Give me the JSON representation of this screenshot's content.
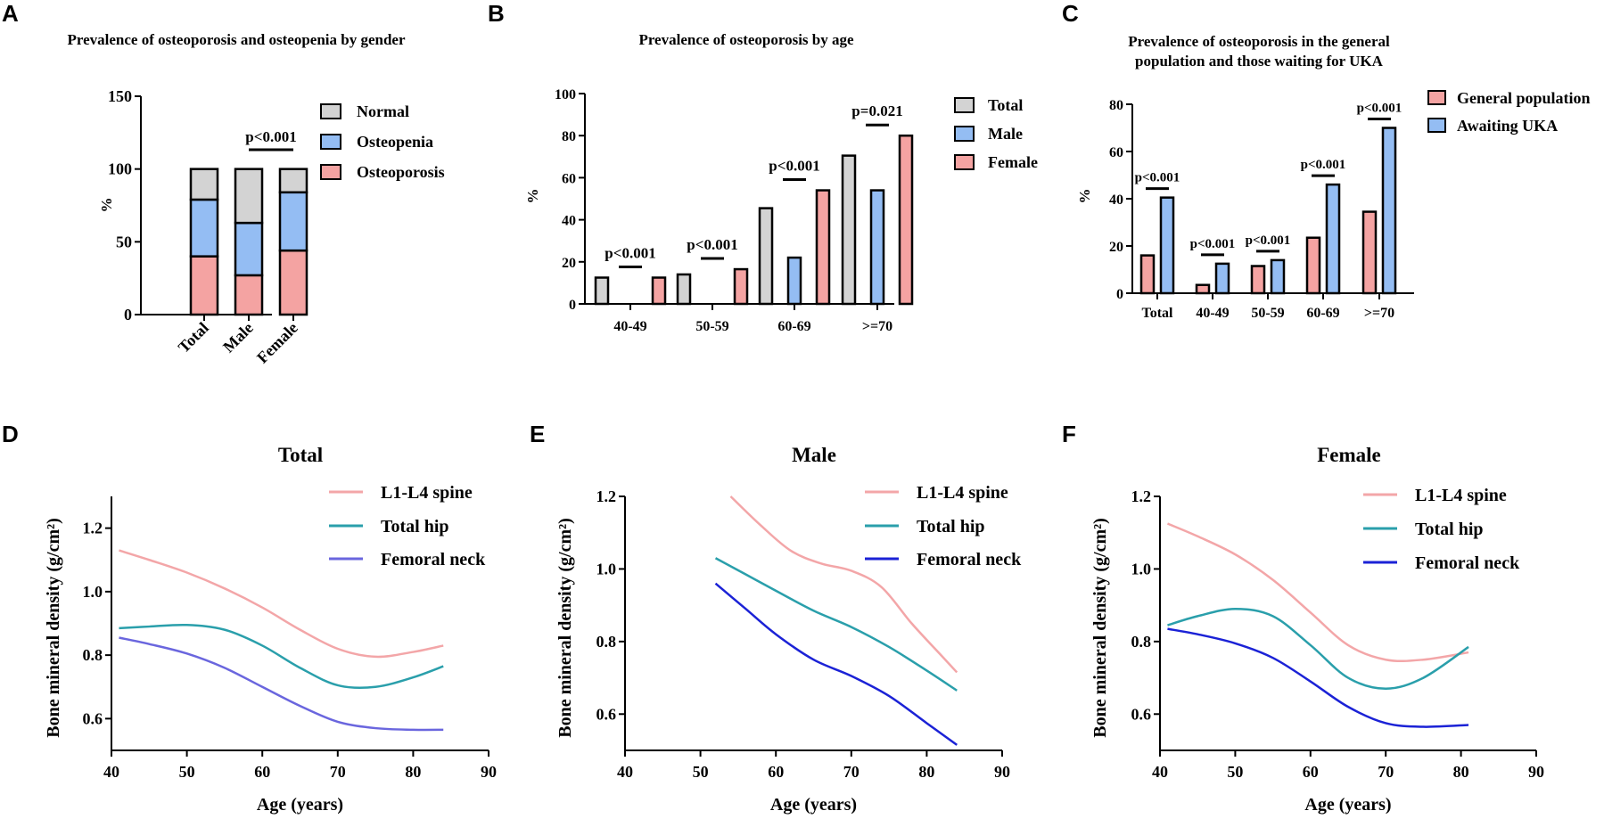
{
  "colors": {
    "gray": "#d3d3d3",
    "blue": "#94bdf3",
    "pink": "#f4a3a2",
    "line_pink": "#f3a6a8",
    "line_teal": "#2a9fab",
    "line_purple": "#6a66de",
    "line_blue": "#1b22d6"
  },
  "chart_data": [
    {
      "panel": "A",
      "type": "bar",
      "stacked": true,
      "title": "Prevalence of osteoporosis and osteopenia by gender",
      "ylabel": "%",
      "ylim": [
        0,
        150
      ],
      "yticks": [
        0,
        50,
        100,
        150
      ],
      "categories": [
        "Total",
        "Male",
        "Female"
      ],
      "series": [
        {
          "name": "Osteoporosis",
          "color": "#f4a3a2",
          "values": [
            40,
            27,
            44
          ]
        },
        {
          "name": "Osteopenia",
          "color": "#94bdf3",
          "values": [
            39,
            36,
            40
          ]
        },
        {
          "name": "Normal",
          "color": "#d3d3d3",
          "values": [
            21,
            37,
            16
          ]
        }
      ],
      "legend": [
        "Normal",
        "Osteopenia",
        "Osteoporosis"
      ],
      "annotations": [
        {
          "text": "p<0.001",
          "from": 1,
          "to": 2
        }
      ]
    },
    {
      "panel": "B",
      "type": "bar",
      "title": "Prevalence of osteoporosis by age",
      "ylabel": "%",
      "ylim": [
        0,
        100
      ],
      "yticks": [
        0,
        20,
        40,
        60,
        80,
        100
      ],
      "categories": [
        "40-49",
        "50-59",
        "60-69",
        ">=70"
      ],
      "series": [
        {
          "name": "Total",
          "color": "#d3d3d3",
          "values": [
            12.5,
            14,
            45.5,
            70.5
          ]
        },
        {
          "name": "Male",
          "color": "#94bdf3",
          "values": [
            0,
            0,
            22,
            54
          ]
        },
        {
          "name": "Female",
          "color": "#f4a3a2",
          "values": [
            12.5,
            16.5,
            54,
            80
          ]
        }
      ],
      "annotations": [
        "p<0.001",
        "p<0.001",
        "p<0.001",
        "p=0.021"
      ]
    },
    {
      "panel": "C",
      "type": "bar",
      "title": [
        "Prevalence of osteoporosis in the general",
        "population and those waiting for UKA"
      ],
      "ylabel": "%",
      "ylim": [
        0,
        80
      ],
      "yticks": [
        0,
        20,
        40,
        60,
        80
      ],
      "categories": [
        "Total",
        "40-49",
        "50-59",
        "60-69",
        ">=70"
      ],
      "series": [
        {
          "name": "General population",
          "color": "#f4a3a2",
          "values": [
            16,
            3.5,
            11.5,
            23.5,
            34.5
          ]
        },
        {
          "name": "Awaiting UKA",
          "color": "#94bdf3",
          "values": [
            40.5,
            12.5,
            14,
            46,
            70
          ]
        }
      ],
      "annotations": [
        "p<0.001",
        "p<0.001",
        "p<0.001",
        "p<0.001",
        "p<0.001"
      ]
    },
    {
      "panel": "D",
      "type": "line",
      "title": "Total",
      "xlabel": "Age (years)",
      "ylabel": "Bone mineral density (g/cm²)",
      "xlim": [
        40,
        90
      ],
      "ylim": [
        0.5,
        1.3
      ],
      "xticks": [
        40,
        50,
        60,
        70,
        80,
        90
      ],
      "yticks": [
        0.6,
        0.8,
        1.0,
        1.2
      ],
      "ytick_labels": [
        "0.6",
        "0.8",
        "1.0",
        "1.2"
      ],
      "series": [
        {
          "name": "L1-L4 spine",
          "color": "#f3a6a8",
          "x": [
            41,
            45,
            50,
            55,
            60,
            65,
            70,
            75,
            80,
            84
          ],
          "y": [
            1.13,
            1.1,
            1.06,
            1.01,
            0.95,
            0.88,
            0.82,
            0.795,
            0.81,
            0.83
          ]
        },
        {
          "name": "Total hip",
          "color": "#2a9fab",
          "x": [
            41,
            45,
            50,
            55,
            60,
            65,
            70,
            75,
            80,
            84
          ],
          "y": [
            0.885,
            0.89,
            0.895,
            0.88,
            0.83,
            0.76,
            0.705,
            0.7,
            0.73,
            0.765
          ]
        },
        {
          "name": "Femoral neck",
          "color": "#6a66de",
          "x": [
            41,
            45,
            50,
            55,
            60,
            65,
            70,
            75,
            80,
            84
          ],
          "y": [
            0.855,
            0.835,
            0.805,
            0.76,
            0.7,
            0.64,
            0.59,
            0.57,
            0.565,
            0.565
          ]
        }
      ]
    },
    {
      "panel": "E",
      "type": "line",
      "title": "Male",
      "xlabel": "Age (years)",
      "ylabel": "Bone mineral density (g/cm²)",
      "xlim": [
        40,
        90
      ],
      "ylim": [
        0.5,
        1.2
      ],
      "xticks": [
        40,
        50,
        60,
        70,
        80,
        90
      ],
      "yticks": [
        0.6,
        0.8,
        1.0,
        1.2
      ],
      "ytick_labels": [
        "0.6",
        "0.8",
        "1.0",
        "1.2"
      ],
      "series": [
        {
          "name": "L1-L4 spine",
          "color": "#f3a6a8",
          "x": [
            54,
            58,
            62,
            66,
            70,
            74,
            78,
            82,
            84
          ],
          "y": [
            1.2,
            1.12,
            1.05,
            1.015,
            0.995,
            0.95,
            0.85,
            0.76,
            0.715
          ]
        },
        {
          "name": "Total hip",
          "color": "#2a9fab",
          "x": [
            52,
            56,
            60,
            65,
            70,
            75,
            80,
            84
          ],
          "y": [
            1.03,
            0.985,
            0.94,
            0.885,
            0.84,
            0.785,
            0.72,
            0.665
          ]
        },
        {
          "name": "Femoral neck",
          "color": "#1b22d6",
          "x": [
            52,
            56,
            60,
            65,
            70,
            75,
            80,
            84
          ],
          "y": [
            0.96,
            0.89,
            0.82,
            0.75,
            0.705,
            0.65,
            0.575,
            0.515
          ]
        }
      ]
    },
    {
      "panel": "F",
      "type": "line",
      "title": "Female",
      "xlabel": "Age (years)",
      "ylabel": "Bone mineral density (g/cm²)",
      "xlim": [
        40,
        90
      ],
      "ylim": [
        0.5,
        1.2
      ],
      "xticks": [
        40,
        50,
        60,
        70,
        80,
        90
      ],
      "yticks": [
        0.6,
        0.8,
        1.0,
        1.2
      ],
      "ytick_labels": [
        "0.6",
        "0.8",
        "1.0",
        "1.2"
      ],
      "series": [
        {
          "name": "L1-L4 spine",
          "color": "#f3a6a8",
          "x": [
            41,
            45,
            50,
            55,
            60,
            65,
            70,
            75,
            81
          ],
          "y": [
            1.125,
            1.09,
            1.04,
            0.97,
            0.88,
            0.79,
            0.75,
            0.75,
            0.77
          ]
        },
        {
          "name": "Total hip",
          "color": "#2a9fab",
          "x": [
            41,
            45,
            50,
            55,
            60,
            65,
            70,
            75,
            81
          ],
          "y": [
            0.845,
            0.87,
            0.89,
            0.87,
            0.79,
            0.7,
            0.67,
            0.7,
            0.785
          ]
        },
        {
          "name": "Femoral neck",
          "color": "#1b22d6",
          "x": [
            41,
            45,
            50,
            55,
            60,
            65,
            70,
            75,
            81
          ],
          "y": [
            0.835,
            0.82,
            0.795,
            0.755,
            0.69,
            0.62,
            0.575,
            0.565,
            0.57
          ]
        }
      ]
    }
  ]
}
